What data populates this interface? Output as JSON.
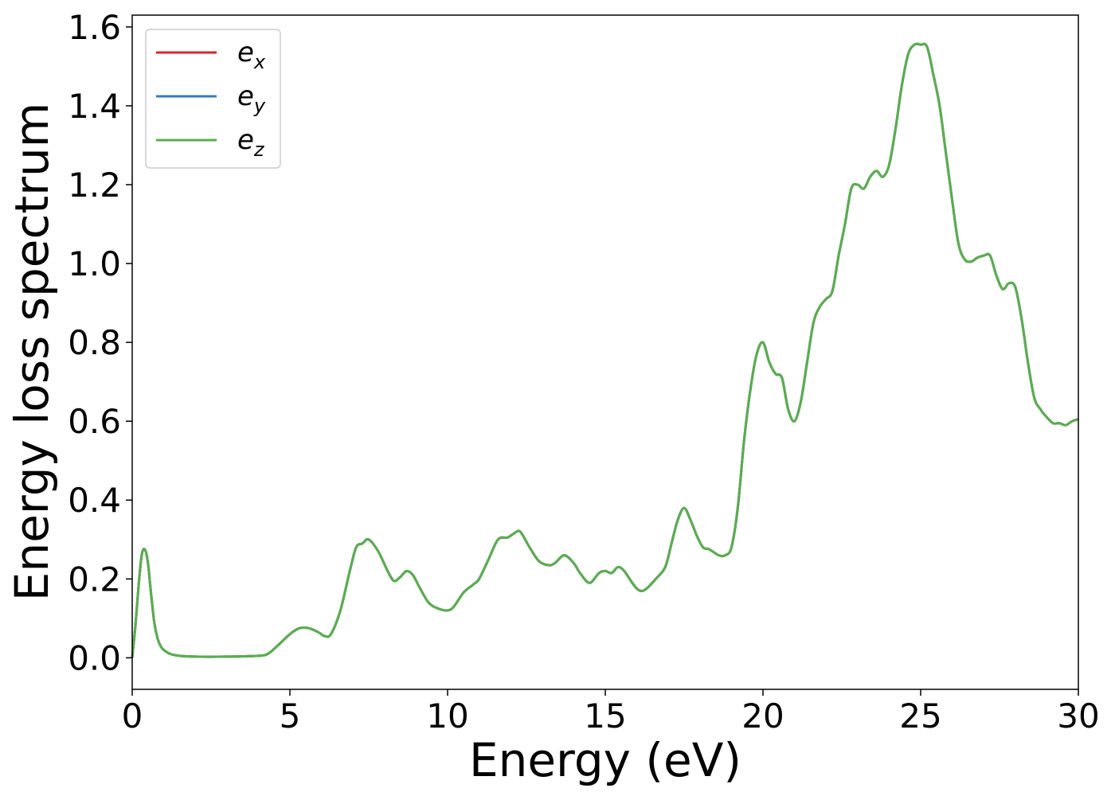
{
  "chart_data": {
    "type": "line",
    "xlabel": "Energy (eV)",
    "ylabel": "Energy loss spectrum",
    "xlim": [
      0,
      30
    ],
    "ylim": [
      -0.08,
      1.63
    ],
    "x_ticks": [
      0,
      5,
      10,
      15,
      20,
      25,
      30
    ],
    "x_tick_labels": [
      "0",
      "5",
      "10",
      "15",
      "20",
      "25",
      "30"
    ],
    "y_ticks": [
      0.0,
      0.2,
      0.4,
      0.6,
      0.8,
      1.0,
      1.2,
      1.4,
      1.6
    ],
    "y_tick_labels": [
      "0.0",
      "0.2",
      "0.4",
      "0.6",
      "0.8",
      "1.0",
      "1.2",
      "1.4",
      "1.6"
    ],
    "grid": false,
    "legend_position": "top-left",
    "colors": {
      "e_x": "#d62728",
      "e_y": "#3a7dbd",
      "e_z": "#5aae4f"
    },
    "legend": [
      {
        "base": "e",
        "sub": "x"
      },
      {
        "base": "e",
        "sub": "y"
      },
      {
        "base": "e",
        "sub": "z"
      }
    ],
    "x": [
      0,
      0.1,
      0.2,
      0.3,
      0.4,
      0.5,
      0.6,
      0.7,
      0.8,
      0.9,
      1.0,
      1.2,
      1.5,
      2.0,
      3.0,
      4.0,
      4.3,
      4.6,
      5.0,
      5.3,
      5.6,
      5.9,
      6.1,
      6.3,
      6.6,
      6.9,
      7.1,
      7.3,
      7.5,
      7.8,
      8.1,
      8.3,
      8.5,
      8.7,
      8.9,
      9.1,
      9.4,
      9.7,
      10.0,
      10.2,
      10.5,
      10.8,
      11.0,
      11.3,
      11.6,
      11.9,
      12.1,
      12.3,
      12.6,
      12.9,
      13.2,
      13.4,
      13.7,
      14.0,
      14.2,
      14.5,
      14.8,
      15.0,
      15.2,
      15.4,
      15.6,
      15.9,
      16.1,
      16.3,
      16.6,
      16.9,
      17.1,
      17.3,
      17.5,
      17.7,
      17.9,
      18.1,
      18.3,
      18.6,
      18.8,
      19.0,
      19.2,
      19.4,
      19.6,
      19.8,
      20.0,
      20.2,
      20.4,
      20.6,
      20.8,
      21.0,
      21.2,
      21.4,
      21.6,
      21.8,
      22.0,
      22.2,
      22.4,
      22.6,
      22.8,
      23.0,
      23.2,
      23.4,
      23.6,
      23.8,
      24.0,
      24.2,
      24.4,
      24.6,
      24.8,
      25.0,
      25.2,
      25.4,
      25.6,
      25.8,
      26.0,
      26.2,
      26.4,
      26.6,
      26.8,
      27.0,
      27.2,
      27.4,
      27.6,
      27.8,
      28.0,
      28.2,
      28.4,
      28.6,
      28.8,
      29.0,
      29.2,
      29.4,
      29.6,
      29.8,
      30.0
    ],
    "series": [
      {
        "name": "e_x",
        "color": "#d62728"
      },
      {
        "name": "e_y",
        "color": "#3a7dbd"
      },
      {
        "name": "e_z",
        "color": "#5aae4f"
      }
    ],
    "values": [
      0.0,
      0.08,
      0.18,
      0.26,
      0.275,
      0.24,
      0.16,
      0.09,
      0.05,
      0.03,
      0.02,
      0.01,
      0.005,
      0.003,
      0.003,
      0.005,
      0.01,
      0.03,
      0.06,
      0.075,
      0.075,
      0.065,
      0.055,
      0.06,
      0.12,
      0.22,
      0.28,
      0.29,
      0.3,
      0.27,
      0.22,
      0.195,
      0.205,
      0.22,
      0.21,
      0.18,
      0.14,
      0.125,
      0.12,
      0.13,
      0.165,
      0.185,
      0.2,
      0.25,
      0.3,
      0.305,
      0.315,
      0.32,
      0.28,
      0.245,
      0.235,
      0.24,
      0.26,
      0.24,
      0.215,
      0.19,
      0.215,
      0.22,
      0.215,
      0.23,
      0.22,
      0.185,
      0.17,
      0.175,
      0.2,
      0.23,
      0.29,
      0.35,
      0.38,
      0.35,
      0.31,
      0.28,
      0.275,
      0.26,
      0.26,
      0.28,
      0.38,
      0.55,
      0.68,
      0.77,
      0.8,
      0.75,
      0.72,
      0.71,
      0.63,
      0.6,
      0.65,
      0.75,
      0.85,
      0.89,
      0.91,
      0.93,
      1.02,
      1.1,
      1.19,
      1.2,
      1.19,
      1.22,
      1.235,
      1.22,
      1.25,
      1.34,
      1.45,
      1.53,
      1.555,
      1.555,
      1.55,
      1.48,
      1.4,
      1.28,
      1.16,
      1.05,
      1.01,
      1.005,
      1.015,
      1.02,
      1.02,
      0.97,
      0.935,
      0.95,
      0.94,
      0.86,
      0.75,
      0.66,
      0.63,
      0.61,
      0.595,
      0.595,
      0.59,
      0.6,
      0.605
    ]
  }
}
